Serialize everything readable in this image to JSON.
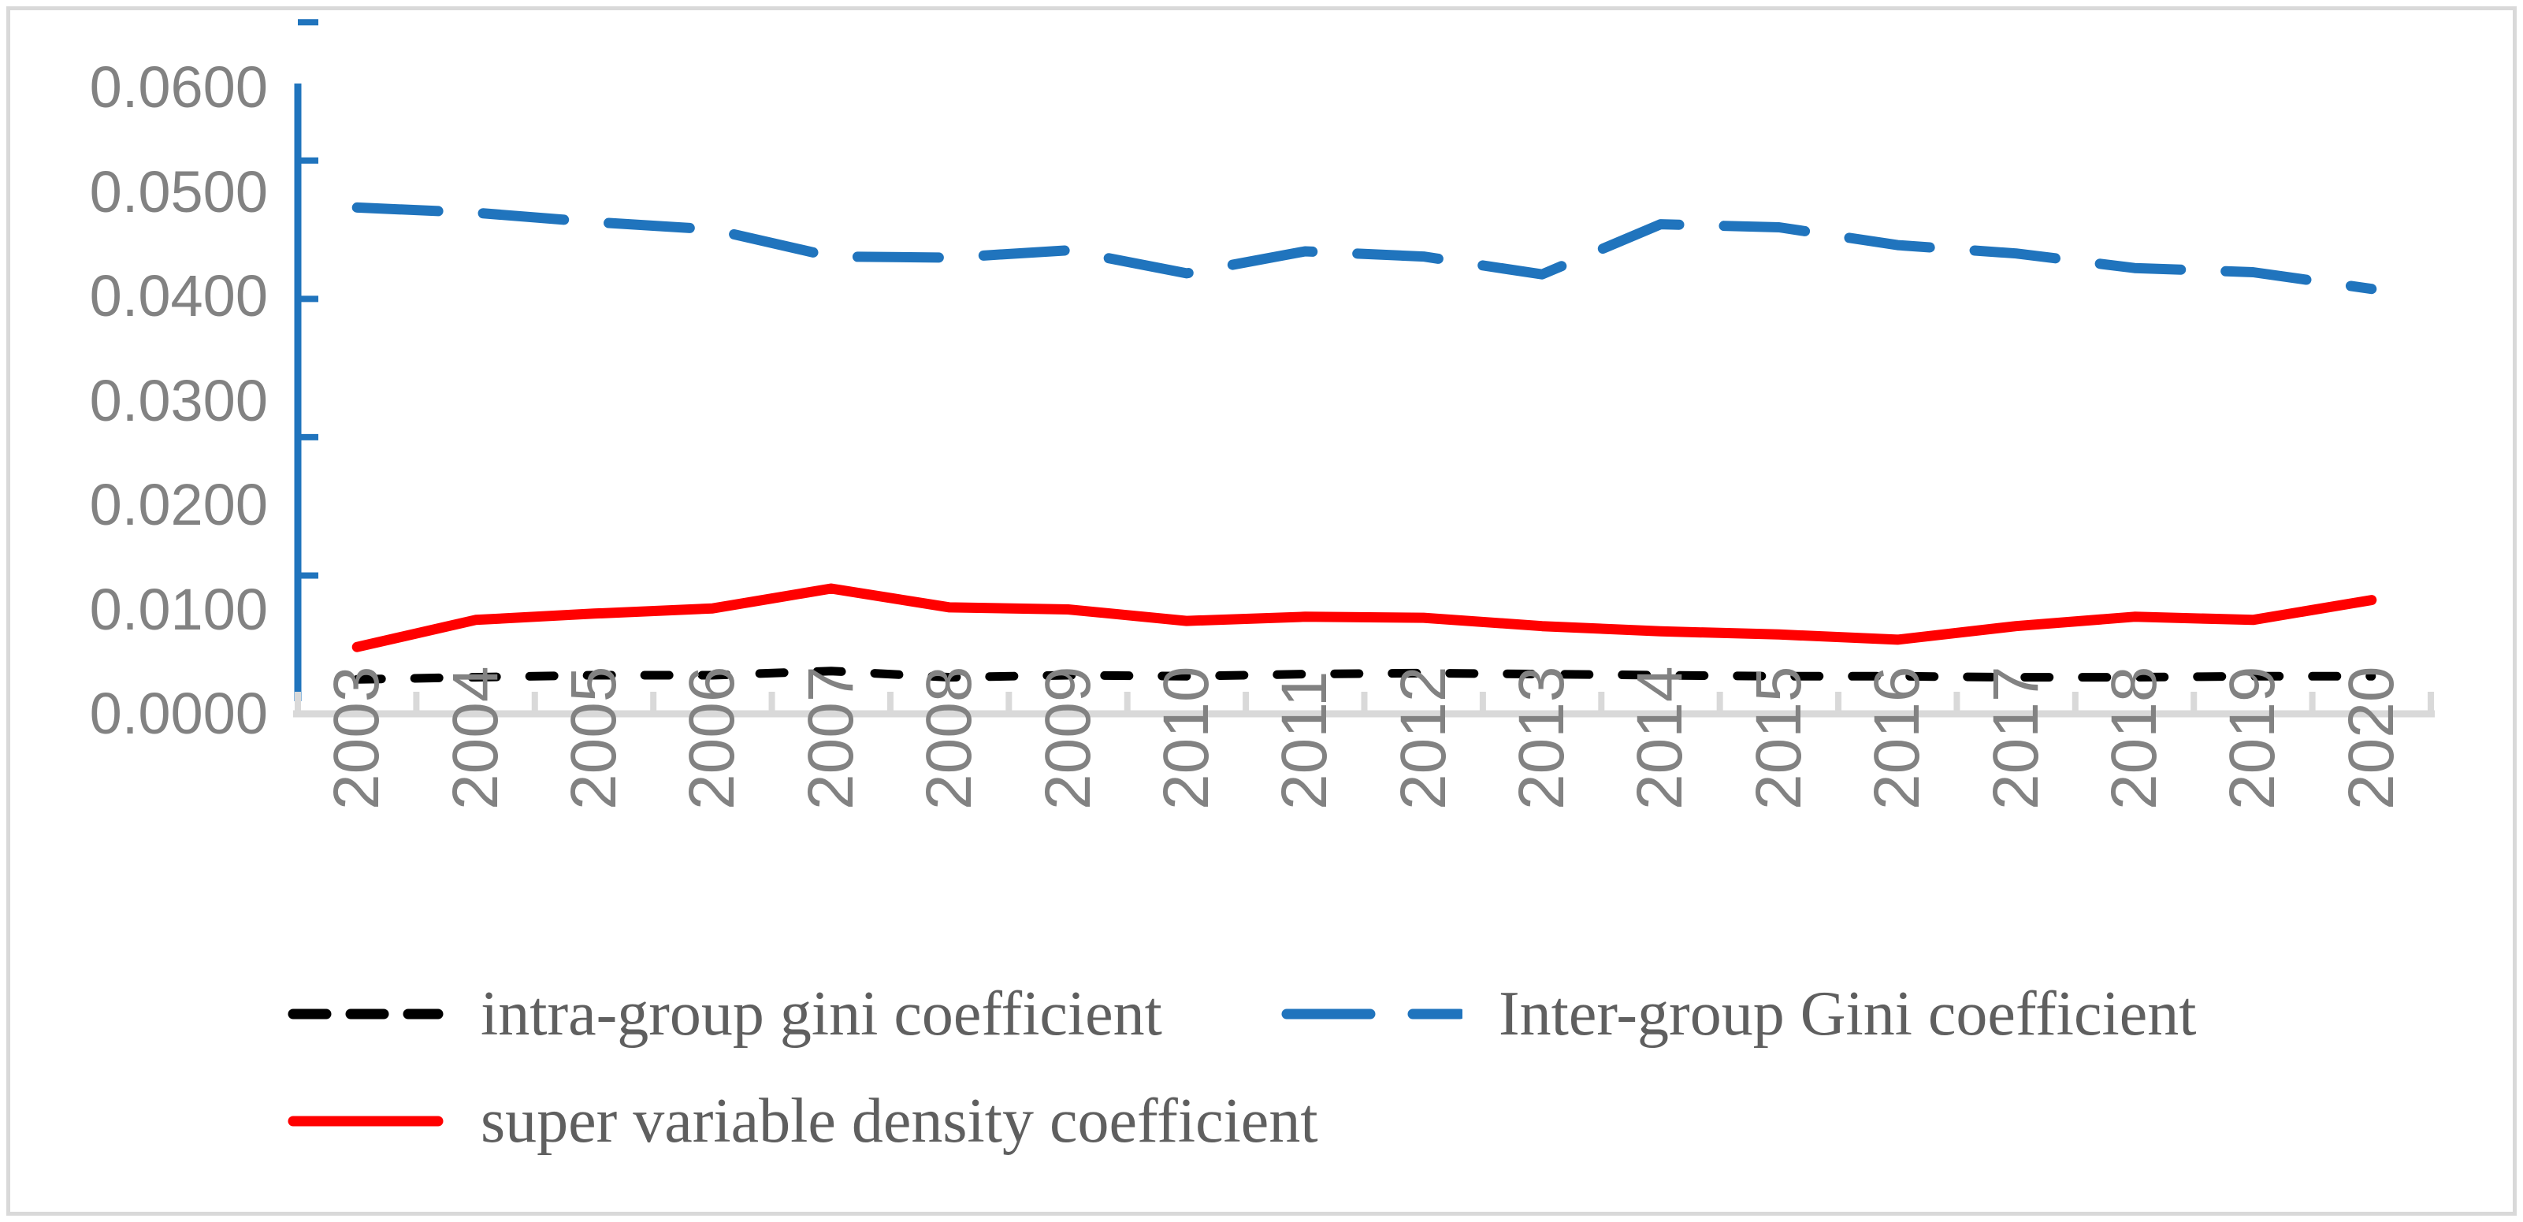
{
  "figure": {
    "background": "#ffffff",
    "border_color": "#d9d9d9"
  },
  "y_axis": {
    "tick_labels": [
      "0.0600",
      "0.0500",
      "0.0400",
      "0.0300",
      "0.0200",
      "0.0100",
      "0.0000"
    ],
    "axis_color": "#2074bd",
    "label_color": "#828282"
  },
  "x_axis": {
    "tick_labels": [
      "2003",
      "2004",
      "2005",
      "2006",
      "2007",
      "2008",
      "2009",
      "2010",
      "2011",
      "2012",
      "2013",
      "2014",
      "2015",
      "2016",
      "2017",
      "2018",
      "2019",
      "2020"
    ],
    "line_color": "#d9d9d9",
    "label_color": "#828282"
  },
  "legend": {
    "text_color": "#5f5f5f",
    "items": [
      {
        "label": "intra-group gini coefficient",
        "series": "intra_group_gini",
        "color": "#000000",
        "style": "dashed-short"
      },
      {
        "label": "Inter-group Gini coefficient",
        "series": "inter_group_gini",
        "color": "#2074bd",
        "style": "dashed-long"
      },
      {
        "label": "super variable density coefficient",
        "series": "super_variable_density",
        "color": "#ff0000",
        "style": "solid"
      }
    ]
  },
  "chart_data": {
    "type": "line",
    "title": "",
    "xlabel": "",
    "ylabel": "",
    "x": [
      "2003",
      "2004",
      "2005",
      "2006",
      "2007",
      "2008",
      "2009",
      "2010",
      "2011",
      "2012",
      "2013",
      "2014",
      "2015",
      "2016",
      "2017",
      "2018",
      "2019",
      "2020"
    ],
    "ylim": [
      0.0,
      0.06
    ],
    "ytick_step": 0.01,
    "grid": false,
    "legend_position": "bottom",
    "series": [
      {
        "name": "intra-group gini coefficient",
        "color": "#000000",
        "line_style": "dashed-short",
        "values": [
          0.0033,
          0.0035,
          0.0037,
          0.0037,
          0.0041,
          0.0035,
          0.0037,
          0.0036,
          0.0038,
          0.0039,
          0.0038,
          0.0037,
          0.0036,
          0.0036,
          0.0035,
          0.0035,
          0.0036,
          0.0036
        ]
      },
      {
        "name": "Inter-group Gini coefficient",
        "color": "#2074bd",
        "line_style": "dashed-long",
        "values": [
          0.0485,
          0.048,
          0.0471,
          0.0464,
          0.0438,
          0.0437,
          0.0444,
          0.0422,
          0.0443,
          0.0438,
          0.0421,
          0.0469,
          0.0466,
          0.0449,
          0.0441,
          0.0427,
          0.0423,
          0.0407
        ]
      },
      {
        "name": "super variable density coefficient",
        "color": "#ff0000",
        "line_style": "solid",
        "values": [
          0.0064,
          0.009,
          0.0096,
          0.0101,
          0.012,
          0.0102,
          0.01,
          0.0089,
          0.0093,
          0.0092,
          0.0084,
          0.0079,
          0.0076,
          0.0071,
          0.0084,
          0.0093,
          0.009,
          0.0109
        ]
      }
    ]
  }
}
